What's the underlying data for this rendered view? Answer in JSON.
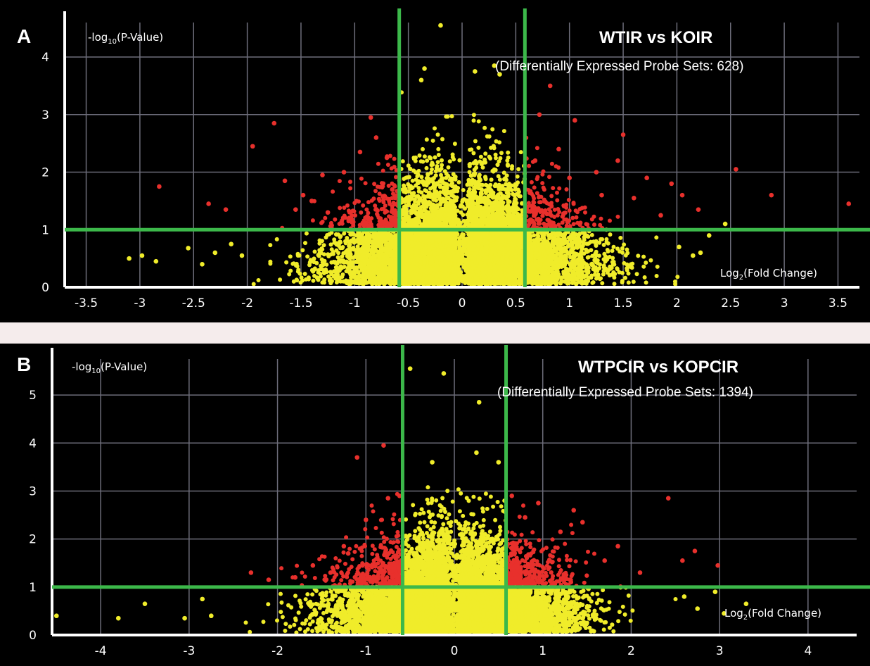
{
  "chart_data": [
    {
      "type": "scatter",
      "panel": "A",
      "title": "WTIR vs KOIR",
      "subtitle": "(Differentially Expressed Probe Sets: 628)",
      "ylabel": "-log10(P-Value)",
      "xlabel": "Log2(Fold Change)",
      "xlim": [
        -3.7,
        3.7
      ],
      "ylim": [
        0,
        4.6
      ],
      "xticks": [
        "-3.5",
        "-3",
        "-2.5",
        "-2",
        "-1.5",
        "-1",
        "-0.5",
        "0",
        "0.5",
        "1",
        "1.5",
        "2",
        "2.5",
        "3",
        "3.5"
      ],
      "yticks": [
        "0",
        "1",
        "2",
        "3",
        "4"
      ],
      "thresholds": {
        "fold_change_x": [
          -0.585,
          0.585
        ],
        "p_value_y": 1.0
      },
      "grid": true,
      "colors": {
        "significant": "#e8302c",
        "not_significant": "#f0ec2a",
        "threshold": "#3cb84a",
        "background": "#000000"
      },
      "highlighted_points": [
        [
          -2.82,
          1.75
        ],
        [
          -2.36,
          1.45
        ],
        [
          -2.2,
          1.35
        ],
        [
          -1.95,
          2.45
        ],
        [
          -1.75,
          2.85
        ],
        [
          -1.65,
          1.85
        ],
        [
          -1.55,
          1.35
        ],
        [
          -1.48,
          1.6
        ],
        [
          -1.4,
          1.5
        ],
        [
          -1.3,
          1.95
        ],
        [
          -1.25,
          1.3
        ],
        [
          -1.1,
          2.0
        ],
        [
          -0.95,
          2.35
        ],
        [
          -0.85,
          2.95
        ],
        [
          -0.8,
          2.6
        ],
        [
          -0.7,
          2.25
        ],
        [
          -0.65,
          1.7
        ],
        [
          0.68,
          2.2
        ],
        [
          0.72,
          3.0
        ],
        [
          0.82,
          3.5
        ],
        [
          0.9,
          2.4
        ],
        [
          1.0,
          1.9
        ],
        [
          1.05,
          2.9
        ],
        [
          1.25,
          2.0
        ],
        [
          1.3,
          1.6
        ],
        [
          1.45,
          2.2
        ],
        [
          1.5,
          2.65
        ],
        [
          1.6,
          1.55
        ],
        [
          1.72,
          1.9
        ],
        [
          1.85,
          1.25
        ],
        [
          1.95,
          1.8
        ],
        [
          2.05,
          1.6
        ],
        [
          2.2,
          1.35
        ],
        [
          2.55,
          2.05
        ],
        [
          2.88,
          1.6
        ],
        [
          3.6,
          1.45
        ]
      ],
      "yellow_points": [
        [
          -3.1,
          0.5
        ],
        [
          -2.98,
          0.55
        ],
        [
          -2.85,
          0.45
        ],
        [
          -2.55,
          0.68
        ],
        [
          -2.42,
          0.4
        ],
        [
          -2.3,
          0.6
        ],
        [
          -2.15,
          0.75
        ],
        [
          -2.05,
          0.55
        ],
        [
          -0.2,
          4.55
        ],
        [
          -0.35,
          3.8
        ],
        [
          -0.38,
          3.6
        ],
        [
          0.12,
          3.75
        ],
        [
          0.3,
          3.85
        ],
        [
          0.35,
          3.7
        ],
        [
          2.02,
          0.7
        ],
        [
          2.15,
          0.55
        ],
        [
          2.22,
          0.6
        ],
        [
          2.3,
          0.9
        ],
        [
          2.45,
          1.1
        ]
      ]
    },
    {
      "type": "scatter",
      "panel": "B",
      "title": "WTPCIR vs KOPCIR",
      "subtitle": "(Differentially Expressed Probe Sets: 1394)",
      "ylabel": "-log10(P-Value)",
      "xlabel": "Log2(Fold Change)",
      "xlim": [
        -4.55,
        4.55
      ],
      "ylim": [
        0,
        5.75
      ],
      "xticks": [
        "-4",
        "-3",
        "-2",
        "-1",
        "0",
        "1",
        "2",
        "3",
        "4"
      ],
      "yticks": [
        "0",
        "1",
        "2",
        "3",
        "4",
        "5"
      ],
      "thresholds": {
        "fold_change_x": [
          -0.585,
          0.585
        ],
        "p_value_y": 1.0
      },
      "grid": true,
      "colors": {
        "significant": "#e8302c",
        "not_significant": "#f0ec2a",
        "threshold": "#3cb84a",
        "background": "#000000"
      },
      "highlighted_points": [
        [
          -2.3,
          1.3
        ],
        [
          -2.1,
          1.15
        ],
        [
          -1.8,
          1.2
        ],
        [
          -1.6,
          1.45
        ],
        [
          -1.4,
          1.3
        ],
        [
          -1.25,
          1.85
        ],
        [
          -1.2,
          1.7
        ],
        [
          -1.1,
          3.7
        ],
        [
          -1.0,
          2.4
        ],
        [
          -0.8,
          3.95
        ],
        [
          -0.75,
          2.85
        ],
        [
          -0.62,
          2.9
        ],
        [
          0.65,
          2.9
        ],
        [
          0.8,
          2.45
        ],
        [
          0.95,
          2.75
        ],
        [
          1.2,
          2.15
        ],
        [
          1.35,
          2.6
        ],
        [
          1.45,
          2.35
        ],
        [
          1.7,
          1.55
        ],
        [
          1.85,
          1.85
        ],
        [
          2.1,
          1.3
        ],
        [
          2.42,
          2.85
        ],
        [
          2.58,
          1.55
        ],
        [
          2.72,
          1.75
        ],
        [
          2.98,
          1.45
        ]
      ],
      "yellow_points": [
        [
          -4.5,
          0.4
        ],
        [
          -3.8,
          0.35
        ],
        [
          -3.5,
          0.65
        ],
        [
          -3.05,
          0.35
        ],
        [
          -2.85,
          0.75
        ],
        [
          -2.75,
          0.4
        ],
        [
          -0.5,
          5.55
        ],
        [
          -0.12,
          5.45
        ],
        [
          0.28,
          4.85
        ],
        [
          0.25,
          3.8
        ],
        [
          -0.25,
          3.6
        ],
        [
          0.5,
          3.6
        ],
        [
          2.6,
          0.8
        ],
        [
          2.75,
          0.55
        ],
        [
          2.95,
          0.9
        ],
        [
          3.05,
          0.45
        ],
        [
          3.3,
          0.65
        ]
      ]
    }
  ],
  "panels": {
    "a": {
      "letter": "A",
      "ylabel_prefix": "-log",
      "ylabel_sub": "10",
      "ylabel_suffix": "(P-Value)",
      "xlabel_prefix": "Log",
      "xlabel_sub": "2",
      "xlabel_suffix": "(Fold Change)"
    },
    "b": {
      "letter": "B",
      "ylabel_prefix": "-log",
      "ylabel_sub": "10",
      "ylabel_suffix": "(P-Value)",
      "xlabel_prefix": "Log",
      "xlabel_sub": "2",
      "xlabel_suffix": "(Fold Change)"
    }
  }
}
